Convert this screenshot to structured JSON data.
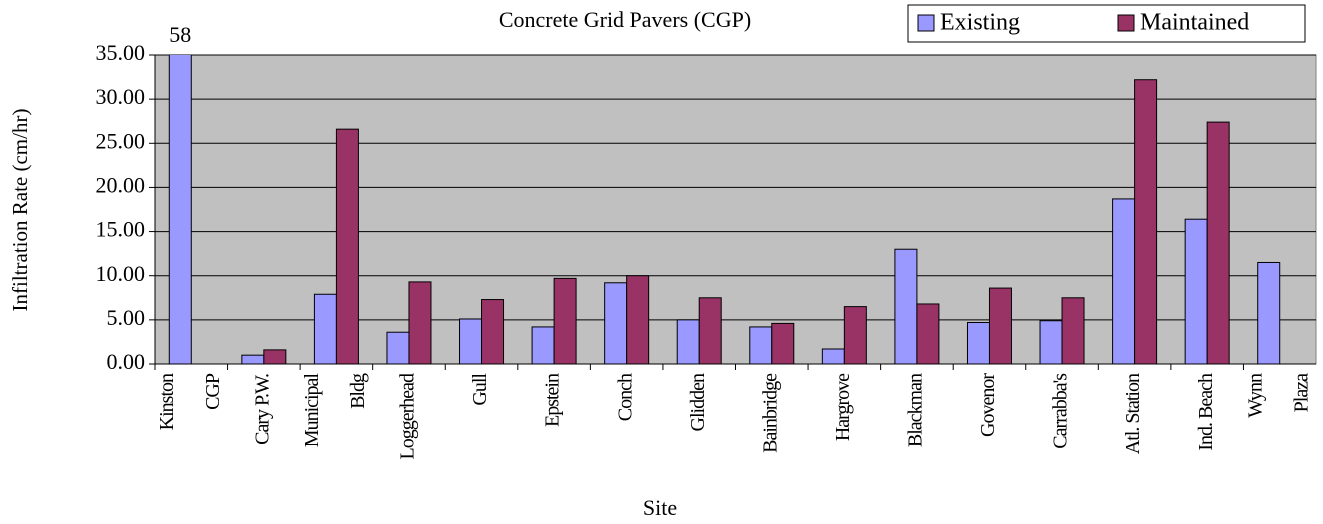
{
  "chart_data": {
    "type": "bar",
    "title": "Concrete Grid Pavers (CGP)",
    "x_label": "Site",
    "y_label": "Infiltration Rate (cm/hr)",
    "categories": [
      [
        "Kinston",
        "CGP"
      ],
      [
        "Cary P.W."
      ],
      [
        "Municipal",
        "Bldg"
      ],
      [
        "Loggerhead"
      ],
      [
        "Gull"
      ],
      [
        "Epstein"
      ],
      [
        "Conch"
      ],
      [
        "Glidden"
      ],
      [
        "Bainbridge"
      ],
      [
        "Hargrove"
      ],
      [
        "Blackman"
      ],
      [
        "Govenor"
      ],
      [
        "Carrabba's"
      ],
      [
        "Atl. Station"
      ],
      [
        "Ind. Beach"
      ],
      [
        "Wynn",
        "Plaza"
      ]
    ],
    "series": [
      {
        "name": "Existing",
        "color": "#9999ff",
        "values": [
          58,
          1.0,
          7.9,
          3.6,
          5.1,
          4.2,
          9.2,
          5.0,
          4.2,
          1.7,
          13.0,
          4.7,
          4.9,
          18.7,
          16.4,
          11.5
        ],
        "value_labels": [
          "58",
          null,
          null,
          null,
          null,
          null,
          null,
          null,
          null,
          null,
          null,
          null,
          null,
          null,
          null,
          null
        ]
      },
      {
        "name": "Maintained",
        "color": "#993366",
        "values": [
          null,
          1.6,
          26.6,
          9.3,
          7.3,
          9.7,
          10.0,
          7.5,
          4.6,
          6.5,
          6.8,
          8.6,
          7.5,
          32.2,
          27.4,
          null
        ]
      }
    ],
    "ylim": [
      0,
      35
    ],
    "yticks": [
      {
        "value": 0,
        "label": "0.00"
      },
      {
        "value": 5,
        "label": "5.00"
      },
      {
        "value": 10,
        "label": "10.00"
      },
      {
        "value": 15,
        "label": "15.00"
      },
      {
        "value": 20,
        "label": "20.00"
      },
      {
        "value": 25,
        "label": "25.00"
      },
      {
        "value": 30,
        "label": "30.00"
      },
      {
        "value": 35,
        "label": "35.00"
      }
    ],
    "grid": true,
    "legend": "top-right",
    "plot_background": "#c0c0c0"
  }
}
